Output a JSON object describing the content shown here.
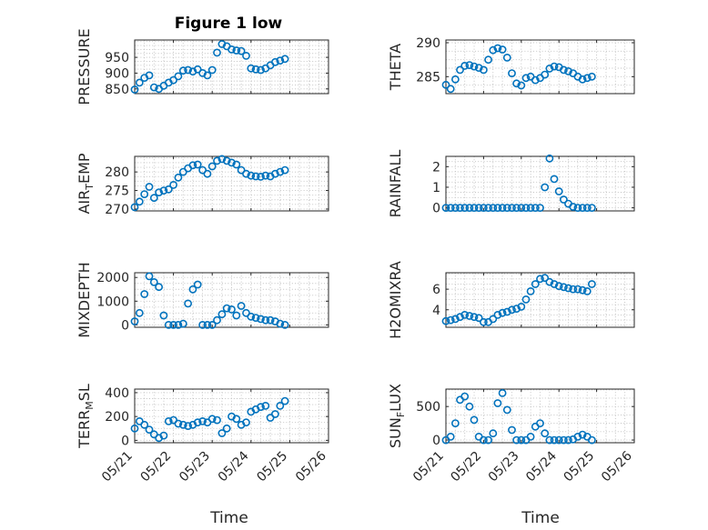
{
  "figure": {
    "title": "Figure 1 low",
    "x_title": "Time",
    "x_ticks": [
      "05/21",
      "05/22",
      "05/23",
      "05/24",
      "05/25",
      "05/26"
    ]
  },
  "chart_data": [
    {
      "type": "scatter",
      "ylabel": "PRESSURE",
      "yticks": [
        "850",
        "900",
        "950"
      ],
      "ylim": [
        835,
        1005
      ],
      "xlim": [
        "05/21",
        "05/26"
      ],
      "marker": "open-circle",
      "color": "#0072BD",
      "grid": true,
      "x": [
        "05/21 00:00",
        "05/21 03:00",
        "05/21 06:00",
        "05/21 09:00",
        "05/21 12:00",
        "05/21 15:00",
        "05/21 18:00",
        "05/21 21:00",
        "05/22 00:00",
        "05/22 03:00",
        "05/22 06:00",
        "05/22 09:00",
        "05/22 12:00",
        "05/22 15:00",
        "05/22 18:00",
        "05/22 21:00",
        "05/23 00:00",
        "05/23 03:00",
        "05/23 06:00",
        "05/23 09:00",
        "05/23 12:00",
        "05/23 15:00",
        "05/23 18:00",
        "05/23 21:00",
        "05/24 00:00",
        "05/24 03:00",
        "05/24 06:00",
        "05/24 09:00",
        "05/24 12:00",
        "05/24 15:00",
        "05/24 18:00",
        "05/24 21:00"
      ],
      "y": [
        848,
        870,
        885,
        893,
        855,
        850,
        860,
        870,
        878,
        890,
        908,
        910,
        905,
        912,
        900,
        893,
        910,
        965,
        992,
        985,
        975,
        972,
        970,
        955,
        915,
        912,
        910,
        915,
        925,
        935,
        940,
        945
      ]
    },
    {
      "type": "scatter",
      "ylabel": "THETA",
      "yticks": [
        "285",
        "290"
      ],
      "ylim": [
        282.5,
        290.4
      ],
      "xlim": [
        "05/21",
        "05/26"
      ],
      "marker": "open-circle",
      "color": "#0072BD",
      "grid": true,
      "x": [
        "05/21 00:00",
        "05/21 03:00",
        "05/21 06:00",
        "05/21 09:00",
        "05/21 12:00",
        "05/21 15:00",
        "05/21 18:00",
        "05/21 21:00",
        "05/22 00:00",
        "05/22 03:00",
        "05/22 06:00",
        "05/22 09:00",
        "05/22 12:00",
        "05/22 15:00",
        "05/22 18:00",
        "05/22 21:00",
        "05/23 00:00",
        "05/23 03:00",
        "05/23 06:00",
        "05/23 09:00",
        "05/23 12:00",
        "05/23 15:00",
        "05/23 18:00",
        "05/23 21:00",
        "05/24 00:00",
        "05/24 03:00",
        "05/24 06:00",
        "05/24 09:00",
        "05/24 12:00",
        "05/24 15:00",
        "05/24 18:00",
        "05/24 21:00"
      ],
      "y": [
        283.8,
        283.2,
        284.6,
        286.0,
        286.6,
        286.7,
        286.5,
        286.3,
        286.0,
        287.5,
        288.9,
        289.2,
        289.0,
        287.8,
        285.5,
        284.0,
        283.7,
        284.8,
        285.0,
        284.5,
        284.8,
        285.3,
        286.2,
        286.5,
        286.4,
        286.0,
        285.8,
        285.5,
        285.0,
        284.6,
        284.8,
        285.0
      ]
    },
    {
      "type": "scatter",
      "ylabel": "AIR_TEMP",
      "yticks": [
        "270",
        "275",
        "280"
      ],
      "ylim": [
        269.5,
        284.2
      ],
      "xlim": [
        "05/21",
        "05/26"
      ],
      "marker": "open-circle",
      "color": "#0072BD",
      "grid": true,
      "x": [
        "05/21 00:00",
        "05/21 03:00",
        "05/21 06:00",
        "05/21 09:00",
        "05/21 12:00",
        "05/21 15:00",
        "05/21 18:00",
        "05/21 21:00",
        "05/22 00:00",
        "05/22 03:00",
        "05/22 06:00",
        "05/22 09:00",
        "05/22 12:00",
        "05/22 15:00",
        "05/22 18:00",
        "05/22 21:00",
        "05/23 00:00",
        "05/23 03:00",
        "05/23 06:00",
        "05/23 09:00",
        "05/23 12:00",
        "05/23 15:00",
        "05/23 18:00",
        "05/23 21:00",
        "05/24 00:00",
        "05/24 03:00",
        "05/24 06:00",
        "05/24 09:00",
        "05/24 12:00",
        "05/24 15:00",
        "05/24 18:00",
        "05/24 21:00"
      ],
      "y": [
        270.5,
        272.0,
        274.0,
        276.0,
        273.0,
        274.5,
        275.0,
        275.3,
        276.5,
        278.5,
        280.0,
        281.0,
        281.8,
        282.0,
        280.5,
        279.5,
        281.5,
        283.0,
        283.5,
        283.0,
        282.5,
        282.0,
        280.5,
        279.5,
        279.0,
        278.8,
        278.7,
        279.0,
        278.8,
        279.5,
        280.0,
        280.5
      ]
    },
    {
      "type": "scatter",
      "ylabel": "RAINFALL",
      "yticks": [
        "0",
        "1",
        "2"
      ],
      "ylim": [
        -0.15,
        2.5
      ],
      "xlim": [
        "05/21",
        "05/26"
      ],
      "marker": "open-circle",
      "color": "#0072BD",
      "grid": true,
      "x": [
        "05/21 00:00",
        "05/21 03:00",
        "05/21 06:00",
        "05/21 09:00",
        "05/21 12:00",
        "05/21 15:00",
        "05/21 18:00",
        "05/21 21:00",
        "05/22 00:00",
        "05/22 03:00",
        "05/22 06:00",
        "05/22 09:00",
        "05/22 12:00",
        "05/22 15:00",
        "05/22 18:00",
        "05/22 21:00",
        "05/23 00:00",
        "05/23 03:00",
        "05/23 06:00",
        "05/23 09:00",
        "05/23 12:00",
        "05/23 15:00",
        "05/23 18:00",
        "05/23 21:00",
        "05/24 00:00",
        "05/24 03:00",
        "05/24 06:00",
        "05/24 09:00",
        "05/24 12:00",
        "05/24 15:00",
        "05/24 18:00",
        "05/24 21:00"
      ],
      "y": [
        0,
        0,
        0,
        0,
        0,
        0,
        0,
        0,
        0,
        0,
        0,
        0,
        0,
        0,
        0,
        0,
        0,
        0,
        0,
        0,
        0,
        1.0,
        2.4,
        1.4,
        0.8,
        0.4,
        0.2,
        0.05,
        0,
        0,
        0,
        0
      ]
    },
    {
      "type": "scatter",
      "ylabel": "MIXDEPTH",
      "yticks": [
        "0",
        "1000",
        "2000"
      ],
      "ylim": [
        -100,
        2200
      ],
      "xlim": [
        "05/21",
        "05/26"
      ],
      "marker": "open-circle",
      "color": "#0072BD",
      "grid": true,
      "x": [
        "05/21 00:00",
        "05/21 03:00",
        "05/21 06:00",
        "05/21 09:00",
        "05/21 12:00",
        "05/21 15:00",
        "05/21 18:00",
        "05/21 21:00",
        "05/22 00:00",
        "05/22 03:00",
        "05/22 06:00",
        "05/22 09:00",
        "05/22 12:00",
        "05/22 15:00",
        "05/22 18:00",
        "05/22 21:00",
        "05/23 00:00",
        "05/23 03:00",
        "05/23 06:00",
        "05/23 09:00",
        "05/23 12:00",
        "05/23 15:00",
        "05/23 18:00",
        "05/23 21:00",
        "05/24 00:00",
        "05/24 03:00",
        "05/24 06:00",
        "05/24 09:00",
        "05/24 12:00",
        "05/24 15:00",
        "05/24 18:00",
        "05/24 21:00"
      ],
      "y": [
        150,
        500,
        1300,
        2050,
        1800,
        1600,
        400,
        0,
        0,
        0,
        50,
        900,
        1500,
        1700,
        0,
        0,
        0,
        200,
        450,
        700,
        650,
        400,
        800,
        500,
        350,
        300,
        250,
        200,
        200,
        150,
        50,
        0
      ]
    },
    {
      "type": "scatter",
      "ylabel": "H2OMIXRA",
      "yticks": [
        "4",
        "6"
      ],
      "ylim": [
        2.3,
        7.6
      ],
      "xlim": [
        "05/21",
        "05/26"
      ],
      "marker": "open-circle",
      "color": "#0072BD",
      "grid": true,
      "x": [
        "05/21 00:00",
        "05/21 03:00",
        "05/21 06:00",
        "05/21 09:00",
        "05/21 12:00",
        "05/21 15:00",
        "05/21 18:00",
        "05/21 21:00",
        "05/22 00:00",
        "05/22 03:00",
        "05/22 06:00",
        "05/22 09:00",
        "05/22 12:00",
        "05/22 15:00",
        "05/22 18:00",
        "05/22 21:00",
        "05/23 00:00",
        "05/23 03:00",
        "05/23 06:00",
        "05/23 09:00",
        "05/23 12:00",
        "05/23 15:00",
        "05/23 18:00",
        "05/23 21:00",
        "05/24 00:00",
        "05/24 03:00",
        "05/24 06:00",
        "05/24 09:00",
        "05/24 12:00",
        "05/24 15:00",
        "05/24 18:00",
        "05/24 21:00"
      ],
      "y": [
        2.9,
        3.0,
        3.1,
        3.3,
        3.5,
        3.4,
        3.3,
        3.2,
        2.8,
        2.8,
        3.1,
        3.5,
        3.7,
        3.8,
        4.0,
        4.1,
        4.3,
        5.0,
        5.8,
        6.5,
        7.0,
        7.1,
        6.7,
        6.5,
        6.3,
        6.2,
        6.1,
        6.0,
        6.0,
        5.9,
        5.8,
        6.5
      ]
    },
    {
      "type": "scatter",
      "ylabel": "TERR_MSL",
      "yticks": [
        "0",
        "200",
        "400"
      ],
      "ylim": [
        -20,
        430
      ],
      "xlim": [
        "05/21",
        "05/26"
      ],
      "marker": "open-circle",
      "color": "#0072BD",
      "grid": true,
      "x": [
        "05/21 00:00",
        "05/21 03:00",
        "05/21 06:00",
        "05/21 09:00",
        "05/21 12:00",
        "05/21 15:00",
        "05/21 18:00",
        "05/21 21:00",
        "05/22 00:00",
        "05/22 03:00",
        "05/22 06:00",
        "05/22 09:00",
        "05/22 12:00",
        "05/22 15:00",
        "05/22 18:00",
        "05/22 21:00",
        "05/23 00:00",
        "05/23 03:00",
        "05/23 06:00",
        "05/23 09:00",
        "05/23 12:00",
        "05/23 15:00",
        "05/23 18:00",
        "05/23 21:00",
        "05/24 00:00",
        "05/24 03:00",
        "05/24 06:00",
        "05/24 09:00",
        "05/24 12:00",
        "05/24 15:00",
        "05/24 18:00",
        "05/24 21:00"
      ],
      "y": [
        100,
        160,
        130,
        90,
        50,
        20,
        40,
        160,
        170,
        140,
        130,
        120,
        130,
        150,
        160,
        150,
        180,
        170,
        60,
        100,
        200,
        180,
        130,
        150,
        240,
        260,
        280,
        290,
        190,
        220,
        290,
        330
      ]
    },
    {
      "type": "scatter",
      "ylabel": "SUN_FLUX",
      "yticks": [
        "0",
        "500"
      ],
      "ylim": [
        -40,
        760
      ],
      "xlim": [
        "05/21",
        "05/26"
      ],
      "marker": "open-circle",
      "color": "#0072BD",
      "grid": true,
      "x": [
        "05/21 00:00",
        "05/21 03:00",
        "05/21 06:00",
        "05/21 09:00",
        "05/21 12:00",
        "05/21 15:00",
        "05/21 18:00",
        "05/21 21:00",
        "05/22 00:00",
        "05/22 03:00",
        "05/22 06:00",
        "05/22 09:00",
        "05/22 12:00",
        "05/22 15:00",
        "05/22 18:00",
        "05/22 21:00",
        "05/23 00:00",
        "05/23 03:00",
        "05/23 06:00",
        "05/23 09:00",
        "05/23 12:00",
        "05/23 15:00",
        "05/23 18:00",
        "05/23 21:00",
        "05/24 00:00",
        "05/24 03:00",
        "05/24 06:00",
        "05/24 09:00",
        "05/24 12:00",
        "05/24 15:00",
        "05/24 18:00",
        "05/24 21:00"
      ],
      "y": [
        0,
        50,
        250,
        600,
        650,
        500,
        300,
        50,
        0,
        0,
        100,
        550,
        700,
        450,
        150,
        0,
        0,
        0,
        50,
        200,
        250,
        100,
        0,
        0,
        0,
        0,
        0,
        10,
        50,
        80,
        50,
        0
      ]
    }
  ]
}
